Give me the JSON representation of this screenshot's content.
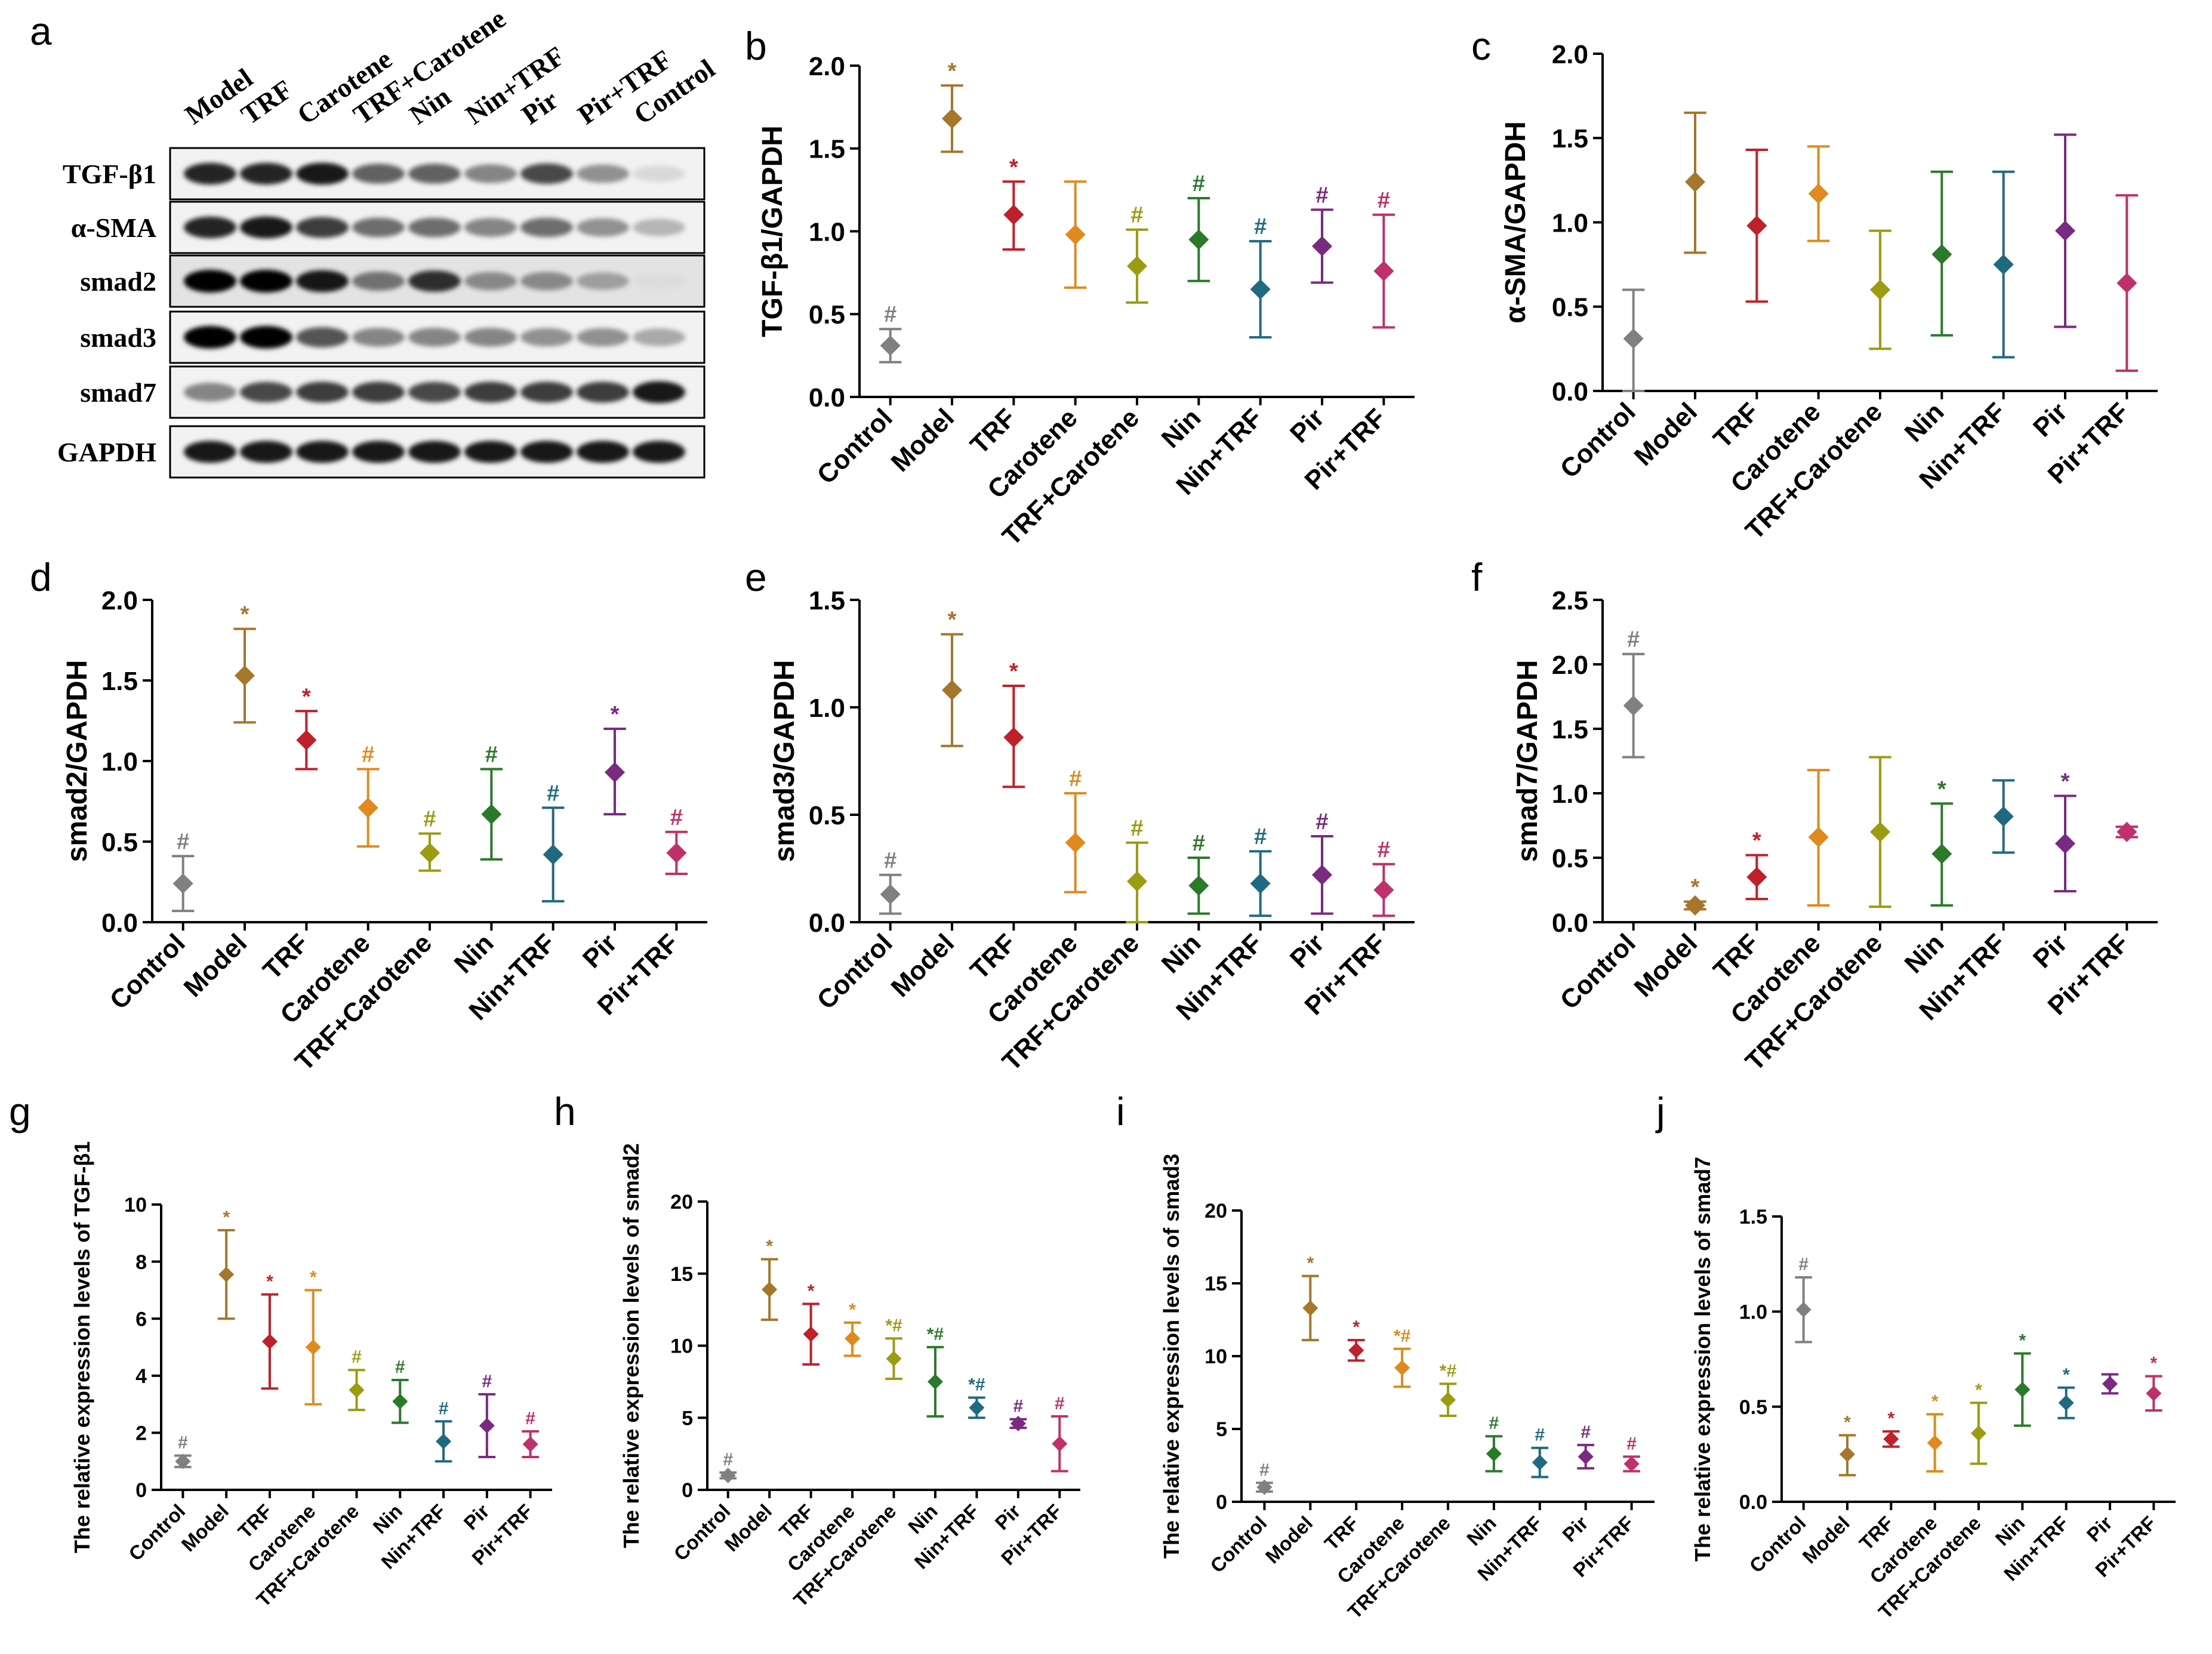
{
  "panel_letters": [
    "a",
    "b",
    "c",
    "d",
    "e",
    "f",
    "g",
    "h",
    "i",
    "j"
  ],
  "blot": {
    "lanes": [
      "Model",
      "TRF",
      "Carotene",
      "TRF+Carotene",
      "Nin",
      "Nin+TRF",
      "Pir",
      "Pir+TRF",
      "Control"
    ],
    "rows": [
      "TGF-β1",
      "α-SMA",
      "smad2",
      "smad3",
      "smad7",
      "GAPDH"
    ]
  },
  "colors": {
    "Control": "#808080",
    "Model": "#A6762B",
    "TRF": "#C0202A",
    "Carotene": "#E08A1E",
    "TRF+Carotene": "#9C9C10",
    "Nin": "#2A7A2A",
    "Nin+TRF": "#1E6A80",
    "Pir": "#7A2A80",
    "Pir+TRF": "#C0306A"
  },
  "chart_data": [
    {
      "panel": "b",
      "type": "scatter",
      "title": "",
      "xlabel": "",
      "ylabel": "TGF-β1/GAPDH",
      "ylim": [
        0,
        2.0
      ],
      "yticks": [
        "0.0",
        "0.5",
        "1.0",
        "1.5",
        "2.0"
      ],
      "categories": [
        "Control",
        "Model",
        "TRF",
        "Carotene",
        "TRF+Carotene",
        "Nin",
        "Nin+TRF",
        "Pir",
        "Pir+TRF"
      ],
      "values": [
        0.31,
        1.68,
        1.1,
        0.98,
        0.79,
        0.95,
        0.65,
        0.91,
        0.76
      ],
      "lower": [
        0.21,
        1.48,
        0.89,
        0.66,
        0.57,
        0.7,
        0.36,
        0.69,
        0.42
      ],
      "upper": [
        0.41,
        1.88,
        1.3,
        1.3,
        1.01,
        1.2,
        0.94,
        1.13,
        1.1
      ],
      "annotations": [
        "#",
        "*",
        "*",
        "",
        "#",
        "#",
        "#",
        "#",
        "#"
      ]
    },
    {
      "panel": "c",
      "type": "scatter",
      "title": "",
      "xlabel": "",
      "ylabel": "α-SMA/GAPDH",
      "ylim": [
        0,
        2.0
      ],
      "yticks": [
        "0.0",
        "0.5",
        "1.0",
        "1.5",
        "2.0"
      ],
      "categories": [
        "Control",
        "Model",
        "TRF",
        "Carotene",
        "TRF+Carotene",
        "Nin",
        "Nin+TRF",
        "Pir",
        "Pir+TRF"
      ],
      "values": [
        0.31,
        1.24,
        0.98,
        1.17,
        0.6,
        0.81,
        0.75,
        0.95,
        0.64
      ],
      "lower": [
        0.0,
        0.82,
        0.53,
        0.89,
        0.25,
        0.33,
        0.2,
        0.38,
        0.12
      ],
      "upper": [
        0.6,
        1.65,
        1.43,
        1.45,
        0.95,
        1.3,
        1.3,
        1.52,
        1.16
      ],
      "annotations": [
        "",
        "",
        "",
        "",
        "",
        "",
        "",
        "",
        ""
      ]
    },
    {
      "panel": "d",
      "type": "scatter",
      "title": "",
      "xlabel": "",
      "ylabel": "smad2/GAPDH",
      "ylim": [
        0,
        2.0
      ],
      "yticks": [
        "0.0",
        "0.5",
        "1.0",
        "1.5",
        "2.0"
      ],
      "categories": [
        "Control",
        "Model",
        "TRF",
        "Carotene",
        "TRF+Carotene",
        "Nin",
        "Nin+TRF",
        "Pir",
        "Pir+TRF"
      ],
      "values": [
        0.24,
        1.53,
        1.13,
        0.71,
        0.43,
        0.67,
        0.42,
        0.93,
        0.43
      ],
      "lower": [
        0.07,
        1.24,
        0.95,
        0.47,
        0.32,
        0.39,
        0.13,
        0.67,
        0.3
      ],
      "upper": [
        0.41,
        1.82,
        1.31,
        0.95,
        0.55,
        0.95,
        0.71,
        1.2,
        0.56
      ],
      "annotations": [
        "#",
        "*",
        "*",
        "#",
        "#",
        "#",
        "#",
        "*",
        "#"
      ]
    },
    {
      "panel": "e",
      "type": "scatter",
      "title": "",
      "xlabel": "",
      "ylabel": "smad3/GAPDH",
      "ylim": [
        0,
        1.5
      ],
      "yticks": [
        "0.0",
        "0.5",
        "1.0",
        "1.5"
      ],
      "categories": [
        "Control",
        "Model",
        "TRF",
        "Carotene",
        "TRF+Carotene",
        "Nin",
        "Nin+TRF",
        "Pir",
        "Pir+TRF"
      ],
      "values": [
        0.13,
        1.08,
        0.86,
        0.37,
        0.19,
        0.17,
        0.18,
        0.22,
        0.15
      ],
      "lower": [
        0.04,
        0.82,
        0.63,
        0.14,
        0.0,
        0.04,
        0.03,
        0.04,
        0.03
      ],
      "upper": [
        0.22,
        1.34,
        1.1,
        0.6,
        0.37,
        0.3,
        0.33,
        0.4,
        0.27
      ],
      "annotations": [
        "#",
        "*",
        "*",
        "#",
        "#",
        "#",
        "#",
        "#",
        "#"
      ]
    },
    {
      "panel": "f",
      "type": "scatter",
      "title": "",
      "xlabel": "",
      "ylabel": "smad7/GAPDH",
      "ylim": [
        0,
        2.5
      ],
      "yticks": [
        "0.0",
        "0.5",
        "1.0",
        "1.5",
        "2.0",
        "2.5"
      ],
      "categories": [
        "Control",
        "Model",
        "TRF",
        "Carotene",
        "TRF+Carotene",
        "Nin",
        "Nin+TRF",
        "Pir",
        "Pir+TRF"
      ],
      "values": [
        1.68,
        0.13,
        0.35,
        0.66,
        0.7,
        0.53,
        0.82,
        0.61,
        0.7
      ],
      "lower": [
        1.28,
        0.1,
        0.18,
        0.13,
        0.12,
        0.13,
        0.54,
        0.24,
        0.66
      ],
      "upper": [
        2.08,
        0.16,
        0.52,
        1.18,
        1.28,
        0.92,
        1.1,
        0.98,
        0.74
      ],
      "annotations": [
        "#",
        "*",
        "*",
        "",
        "",
        "*",
        "",
        "*",
        ""
      ]
    },
    {
      "panel": "g",
      "type": "scatter",
      "title": "",
      "xlabel": "",
      "ylabel": "The relative expression levels of TGF-β1",
      "ylim": [
        0,
        10
      ],
      "yticks": [
        "0",
        "2",
        "4",
        "6",
        "8",
        "10"
      ],
      "categories": [
        "Control",
        "Model",
        "TRF",
        "Carotene",
        "TRF+Carotene",
        "Nin",
        "Nin+TRF",
        "Pir",
        "Pir+TRF"
      ],
      "values": [
        1.0,
        7.55,
        5.2,
        5.0,
        3.5,
        3.1,
        1.7,
        2.25,
        1.6
      ],
      "lower": [
        0.8,
        6.0,
        3.55,
        3.0,
        2.8,
        2.35,
        1.0,
        1.15,
        1.15
      ],
      "upper": [
        1.2,
        9.1,
        6.85,
        7.0,
        4.2,
        3.85,
        2.4,
        3.35,
        2.05
      ],
      "annotations": [
        "#",
        "*",
        "*",
        "*",
        "#",
        "#",
        "#",
        "#",
        "#"
      ]
    },
    {
      "panel": "h",
      "type": "scatter",
      "title": "",
      "xlabel": "",
      "ylabel": "The relative expression levels of smad2",
      "ylim": [
        0,
        20
      ],
      "yticks": [
        "0",
        "5",
        "10",
        "15",
        "20"
      ],
      "categories": [
        "Control",
        "Model",
        "TRF",
        "Carotene",
        "TRF+Carotene",
        "Nin",
        "Nin+TRF",
        "Pir",
        "Pir+TRF"
      ],
      "values": [
        1.0,
        13.9,
        10.8,
        10.5,
        9.1,
        7.5,
        5.7,
        4.6,
        3.2
      ],
      "lower": [
        0.8,
        11.8,
        8.7,
        9.3,
        7.7,
        5.1,
        5.0,
        4.3,
        1.3
      ],
      "upper": [
        1.2,
        16.0,
        12.9,
        11.6,
        10.5,
        9.9,
        6.4,
        4.9,
        5.1
      ],
      "annotations": [
        "#",
        "*",
        "*",
        "*",
        "*#",
        "*#",
        "*#",
        "#",
        "#"
      ]
    },
    {
      "panel": "i",
      "type": "scatter",
      "title": "",
      "xlabel": "",
      "ylabel": "The relative expression levels of smad3",
      "ylim": [
        0,
        20
      ],
      "yticks": [
        "0",
        "5",
        "10",
        "15",
        "20"
      ],
      "categories": [
        "Control",
        "Model",
        "TRF",
        "Carotene",
        "TRF+Carotene",
        "Nin",
        "Nin+TRF",
        "Pir",
        "Pir+TRF"
      ],
      "values": [
        1.0,
        13.3,
        10.4,
        9.2,
        7.0,
        3.3,
        2.7,
        3.1,
        2.6
      ],
      "lower": [
        0.7,
        11.1,
        9.7,
        7.9,
        5.9,
        2.1,
        1.7,
        2.3,
        2.1
      ],
      "upper": [
        1.3,
        15.5,
        11.1,
        10.5,
        8.1,
        4.5,
        3.7,
        3.9,
        3.1
      ],
      "annotations": [
        "#",
        "*",
        "*",
        "*#",
        "*#",
        "#",
        "#",
        "#",
        "#"
      ]
    },
    {
      "panel": "j",
      "type": "scatter",
      "title": "",
      "xlabel": "",
      "ylabel": "The relative expression levels of smad7",
      "ylim": [
        0,
        1.5
      ],
      "yticks": [
        "0.0",
        "0.5",
        "1.0",
        "1.5"
      ],
      "categories": [
        "Control",
        "Model",
        "TRF",
        "Carotene",
        "TRF+Carotene",
        "Nin",
        "Nin+TRF",
        "Pir",
        "Pir+TRF"
      ],
      "values": [
        1.01,
        0.25,
        0.33,
        0.31,
        0.36,
        0.59,
        0.52,
        0.62,
        0.57
      ],
      "lower": [
        0.84,
        0.14,
        0.29,
        0.16,
        0.2,
        0.4,
        0.44,
        0.57,
        0.48
      ],
      "upper": [
        1.18,
        0.35,
        0.37,
        0.46,
        0.52,
        0.78,
        0.6,
        0.67,
        0.66
      ],
      "annotations": [
        "#",
        "*",
        "*",
        "*",
        "*",
        "*",
        "*",
        "",
        "*"
      ]
    }
  ]
}
